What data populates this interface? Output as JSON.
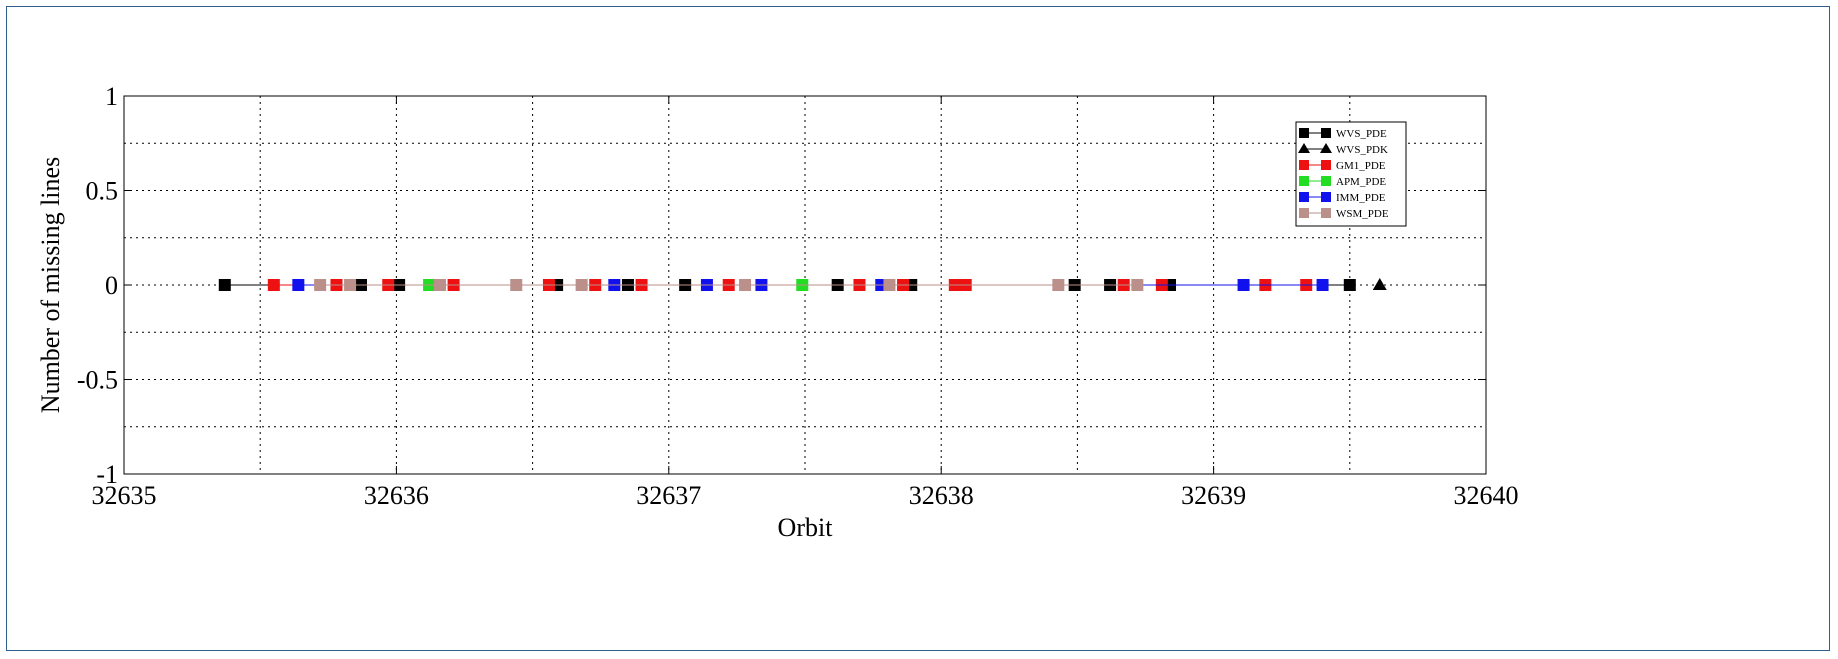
{
  "chart_data": {
    "type": "line",
    "title": "",
    "xlabel": "Orbit",
    "ylabel": "Number of missing lines",
    "xlim": [
      32635,
      32640
    ],
    "ylim": [
      -1,
      1
    ],
    "x_ticks": [
      32635,
      32636,
      32637,
      32638,
      32639,
      32640
    ],
    "x_tick_labels": [
      "32635",
      "32636",
      "32637",
      "32638",
      "32639",
      "32640"
    ],
    "y_ticks": [
      -1,
      -0.5,
      0,
      0.5,
      1
    ],
    "y_tick_labels": [
      "-1",
      "-0.5",
      "0",
      "0.5",
      "1"
    ],
    "grid": true,
    "legend_position": "top-right",
    "series": [
      {
        "name": "WVS_PDE",
        "color": "#000000",
        "marker": "square",
        "x": [
          32635.37,
          32635.87,
          32636.01,
          32636.59,
          32636.85,
          32637.06,
          32637.62,
          32637.89,
          32638.49,
          32638.62,
          32638.84,
          32639.5
        ],
        "y": [
          0,
          0,
          0,
          0,
          0,
          0,
          0,
          0,
          0,
          0,
          0,
          0
        ]
      },
      {
        "name": "WVS_PDK",
        "color": "#000000",
        "marker": "triangle",
        "x": [
          32639.61
        ],
        "y": [
          0
        ]
      },
      {
        "name": "GM1_PDE",
        "color": "#ee1111",
        "marker": "square",
        "x": [
          32635.55,
          32635.78,
          32635.97,
          32636.21,
          32636.56,
          32636.73,
          32636.9,
          32637.22,
          32637.7,
          32637.86,
          32638.05,
          32638.09,
          32638.67,
          32638.81,
          32639.19,
          32639.34
        ],
        "y": [
          0,
          0,
          0,
          0,
          0,
          0,
          0,
          0,
          0,
          0,
          0,
          0,
          0,
          0,
          0,
          0
        ]
      },
      {
        "name": "APM_PDE",
        "color": "#22dd22",
        "marker": "square",
        "x": [
          32636.12,
          32637.49
        ],
        "y": [
          0,
          0
        ]
      },
      {
        "name": "IMM_PDE",
        "color": "#1111ee",
        "marker": "square",
        "x": [
          32635.64,
          32636.8,
          32637.14,
          32637.34,
          32637.78,
          32639.11,
          32639.4
        ],
        "y": [
          0,
          0,
          0,
          0,
          0,
          0,
          0
        ]
      },
      {
        "name": "WSM_PDE",
        "color": "#bb8f8a",
        "marker": "square",
        "x": [
          32635.72,
          32635.83,
          32636.16,
          32636.44,
          32636.68,
          32637.28,
          32637.81,
          32638.43,
          32638.72
        ],
        "y": [
          0,
          0,
          0,
          0,
          0,
          0,
          0,
          0,
          0
        ]
      }
    ]
  }
}
